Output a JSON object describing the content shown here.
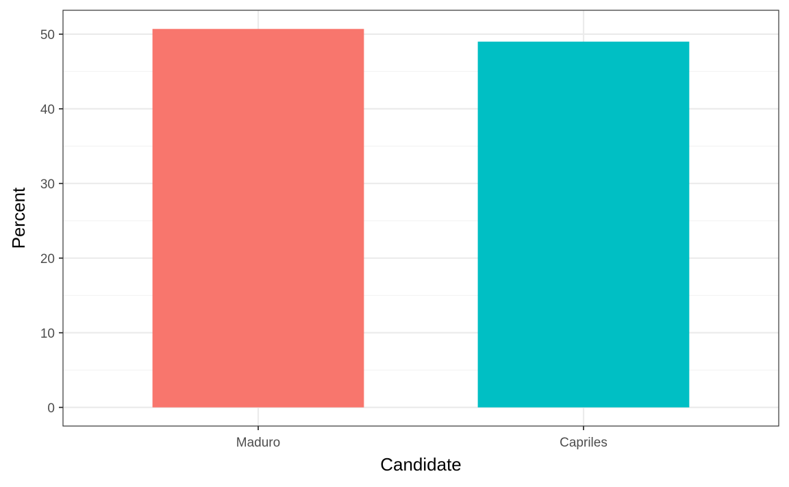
{
  "chart_data": {
    "type": "bar",
    "categories": [
      "Maduro",
      "Capriles"
    ],
    "values": [
      50.7,
      49.0
    ],
    "colors": [
      "#F8766D",
      "#00BFC4"
    ],
    "xlabel": "Candidate",
    "ylabel": "Percent",
    "ylim": [
      -2.5,
      53.2
    ],
    "yticks": [
      0,
      10,
      20,
      30,
      40,
      50
    ],
    "ytick_labels": [
      "0",
      "10",
      "20",
      "30",
      "40",
      "50"
    ],
    "grid": true,
    "legend": "none",
    "theme": {
      "panel_border": "#333333",
      "grid_major": "#ebebeb",
      "grid_minor": "#f2f2f2",
      "tick_color": "#333333"
    }
  }
}
